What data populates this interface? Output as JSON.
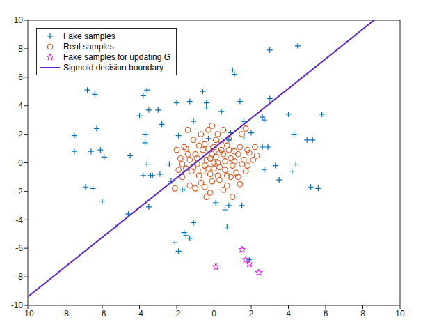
{
  "chart_data": {
    "type": "scatter",
    "xlim": [
      -10,
      10
    ],
    "ylim": [
      -10,
      10
    ],
    "xticks": [
      -10,
      -8,
      -6,
      -4,
      -2,
      0,
      2,
      4,
      6,
      8,
      10
    ],
    "yticks": [
      -10,
      -8,
      -6,
      -4,
      -2,
      0,
      2,
      4,
      6,
      8,
      10
    ],
    "grid": false,
    "legend": "upper left",
    "series": [
      {
        "name": "Fake samples",
        "type": "scatter",
        "color": "#0072BD",
        "marker": "plus",
        "x": [
          -7.5,
          -7.5,
          -6.8,
          -6.4,
          -6.3,
          -6.6,
          -6.1,
          -5.9,
          -6.9,
          -6.5,
          -6.0,
          -5.3,
          -4.6,
          -4.5,
          -4.0,
          -3.8,
          -3.6,
          -3.5,
          -3.7,
          -3.7,
          -3.8,
          -3.4,
          -3.3,
          -3.5,
          -3.6,
          -3.0,
          -2.8,
          -2.9,
          -2.3,
          -2.4,
          -2.0,
          -1.9,
          -1.6,
          -1.7,
          -1.3,
          -1.1,
          -0.6,
          -0.4,
          -0.4,
          -0.3,
          0.4,
          0.8,
          0.9,
          1.0,
          1.1,
          1.4,
          1.6,
          2.0,
          1.6,
          2.6,
          2.7,
          3.0,
          3.0,
          2.9,
          2.6,
          2.7,
          3.3,
          3.5,
          4.3,
          4.0,
          4.5,
          5.0,
          5.3,
          5.8,
          4.4,
          5.2,
          5.6,
          4.2,
          1.5,
          0.6,
          0.8,
          0.7,
          0.1,
          -1.1,
          -1.6,
          -1.5,
          -1.3,
          -2.1,
          -1.9,
          1.9
        ],
        "values": [
          1.9,
          0.8,
          5.1,
          4.8,
          2.4,
          0.8,
          0.9,
          0.4,
          -1.7,
          -1.8,
          -2.7,
          -4.5,
          -3.6,
          0.5,
          3.3,
          4.7,
          5.1,
          3.7,
          2.0,
          1.4,
          -0.9,
          -0.9,
          -0.9,
          -3.1,
          -0.1,
          3.7,
          2.7,
          -0.8,
          -1.3,
          -0.1,
          4.2,
          1.9,
          -1.9,
          -1.9,
          4.3,
          2.9,
          5.0,
          3.9,
          4.2,
          1.7,
          3.6,
          1.6,
          2.1,
          6.5,
          6.2,
          4.3,
          2.9,
          2.1,
          1.8,
          3.2,
          3.0,
          4.5,
          7.9,
          1.1,
          1.1,
          -0.5,
          -0.2,
          -1.2,
          2.0,
          3.4,
          8.2,
          1.6,
          1.6,
          3.4,
          -0.1,
          -1.7,
          -1.8,
          -0.6,
          -3.0,
          -3.3,
          -3.0,
          -4.5,
          -2.8,
          -4.2,
          -4.9,
          -5.1,
          -5.3,
          -5.6,
          -6.2,
          -6.8
        ]
      },
      {
        "name": "Real samples",
        "type": "scatter",
        "color": "#D95319",
        "marker": "circle",
        "x": [
          -1.6,
          -1.5,
          -1.8,
          -1.3,
          -1.7,
          -1.5,
          -1.9,
          -1.2,
          -1.1,
          -1.0,
          -0.9,
          -0.8,
          -0.6,
          -0.6,
          -0.5,
          -0.4,
          -0.3,
          -0.2,
          -0.1,
          0.0,
          0.1,
          0.2,
          0.3,
          0.4,
          0.5,
          0.6,
          0.7,
          0.8,
          0.9,
          1.0,
          1.1,
          1.2,
          1.3,
          1.4,
          1.5,
          1.6,
          1.7,
          1.8,
          1.9,
          2.1,
          2.2,
          1.7,
          1.4,
          1.0,
          0.7,
          0.5,
          0.3,
          -0.2,
          -0.4,
          -0.5,
          -0.7,
          -1.0,
          -1.3,
          -0.3,
          -0.1,
          0.2,
          0.5,
          -0.7,
          -1.4,
          -2.1,
          -0.9,
          -0.2,
          0.3,
          0.8,
          1.1,
          0.6,
          0.0,
          -0.5,
          -1.1,
          -1.4,
          0.9,
          0.2,
          -0.1,
          1.3,
          1.8,
          2.3,
          0.4,
          -0.3,
          0.7,
          -0.8,
          1.5,
          -2.0,
          -1.7,
          0.0,
          0.1
        ],
        "values": [
          1.1,
          1.0,
          0.3,
          0.2,
          -0.1,
          -0.4,
          -0.5,
          -0.6,
          1.6,
          0.6,
          -0.1,
          -0.9,
          -0.6,
          0.9,
          1.3,
          0.2,
          -0.4,
          -0.8,
          0.6,
          1.1,
          0.4,
          0.0,
          -0.3,
          0.9,
          0.6,
          -0.5,
          1.2,
          1.7,
          0.3,
          -0.2,
          0.8,
          -0.7,
          0.6,
          1.1,
          -0.1,
          0.2,
          2.4,
          0.9,
          0.7,
          0.2,
          1.1,
          -0.6,
          -1.5,
          -2.4,
          -1.6,
          -1.9,
          -1.2,
          -2.1,
          -2.4,
          -1.7,
          -1.4,
          -1.8,
          -1.6,
          2.3,
          2.6,
          2.0,
          2.3,
          2.0,
          2.3,
          -1.8,
          0.3,
          0.3,
          0.7,
          0.9,
          0.1,
          0.1,
          -0.4,
          -0.2,
          -0.3,
          0.6,
          -1.0,
          -0.9,
          -1.3,
          -1.0,
          -0.2,
          0.5,
          1.5,
          1.0,
          -0.9,
          1.2,
          2.0,
          0.9,
          -1.0,
          0.0,
          1.6
        ]
      },
      {
        "name": "Fake samples for updating G",
        "type": "scatter",
        "color": "#FF00FF",
        "marker": "star",
        "x": [
          0.1,
          1.5,
          1.7,
          1.9,
          2.4
        ],
        "values": [
          -7.3,
          -6.1,
          -6.8,
          -7.1,
          -7.7
        ]
      },
      {
        "name": "Sigmoid decision boundary",
        "type": "line",
        "color": "#5B1FE0",
        "line_style": "solid",
        "x": [
          -10,
          8.6
        ],
        "values": [
          -9.4,
          10
        ]
      }
    ]
  }
}
